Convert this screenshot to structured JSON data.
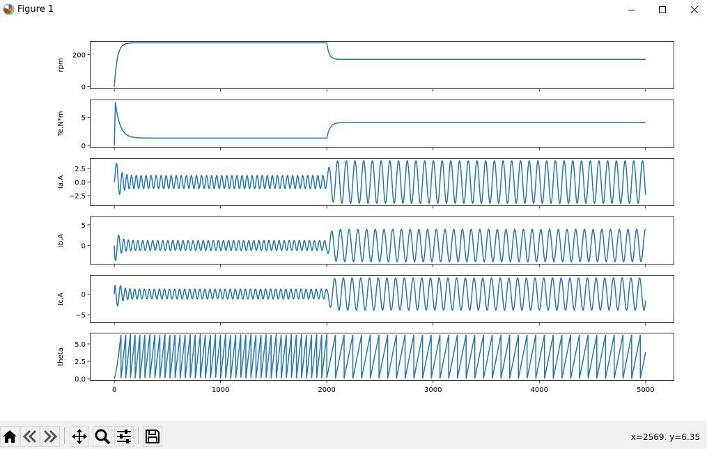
{
  "window": {
    "title": "Figure 1",
    "icons": [
      "matplotlib-logo-icon",
      "minimize-icon",
      "maximize-icon",
      "close-icon"
    ]
  },
  "toolbar": {
    "buttons": [
      {
        "name": "home-button",
        "icon": "home-icon"
      },
      {
        "name": "back-button",
        "icon": "back-arrow-icon"
      },
      {
        "name": "forward-button",
        "icon": "forward-arrow-icon"
      },
      {
        "name": "pan-button",
        "icon": "move-icon"
      },
      {
        "name": "zoom-button",
        "icon": "zoom-icon"
      },
      {
        "name": "subplots-button",
        "icon": "sliders-icon"
      },
      {
        "name": "save-button",
        "icon": "save-icon"
      }
    ],
    "coords": "x=2569. y=6.35"
  },
  "chart_data": [
    {
      "type": "line",
      "ylabel": "rpm",
      "xlim": [
        -230,
        5270
      ],
      "ylim": [
        -15,
        285
      ],
      "yticks": [
        0,
        200
      ],
      "yticklabels": [
        "0",
        "200"
      ],
      "color": "#1f77b4",
      "series": [
        {
          "kind": "step_response",
          "x_end": 5000,
          "start": 0,
          "level1": 274,
          "x_change": 2000,
          "level2": 171
        }
      ]
    },
    {
      "type": "line",
      "ylabel": "Te,N*m",
      "xlim": [
        -230,
        5270
      ],
      "ylim": [
        -0.4,
        8.2
      ],
      "yticks": [
        0,
        5
      ],
      "yticklabels": [
        "0",
        "5"
      ],
      "color": "#1f77b4",
      "series": [
        {
          "kind": "torque",
          "x_end": 5000,
          "peak": 7.7,
          "peak_x": 10,
          "level1": 1.3,
          "x_change": 2000,
          "level2": 4.1
        }
      ]
    },
    {
      "type": "line",
      "ylabel": "Ia,A",
      "xlim": [
        -230,
        5270
      ],
      "ylim": [
        -4.4,
        4.4
      ],
      "yticks": [
        2.5,
        0.0,
        -2.5
      ],
      "yticklabels": [
        "2.5",
        "0.0",
        "−2.5"
      ],
      "color": "#1f77b4",
      "series": [
        {
          "kind": "sine_current",
          "x_end": 5000,
          "phase_deg": 0,
          "amp1": 1.2,
          "period1": 47.6,
          "amp2": 3.9,
          "period2": 82,
          "x_change": 2000
        }
      ]
    },
    {
      "type": "line",
      "ylabel": "Ib,A",
      "xlim": [
        -230,
        5270
      ],
      "ylim": [
        -4.6,
        7.0
      ],
      "yticks": [
        5,
        0
      ],
      "yticklabels": [
        "5",
        "0"
      ],
      "color": "#1f77b4",
      "series": [
        {
          "kind": "sine_current",
          "x_end": 5000,
          "phase_deg": -120,
          "amp1": 1.2,
          "period1": 47.6,
          "amp2": 3.9,
          "period2": 82,
          "x_change": 2000
        }
      ]
    },
    {
      "type": "line",
      "ylabel": "Ic,A",
      "xlim": [
        -230,
        5270
      ],
      "ylim": [
        -7.0,
        4.6
      ],
      "yticks": [
        0,
        -5
      ],
      "yticklabels": [
        "0",
        "−5"
      ],
      "color": "#1f77b4",
      "series": [
        {
          "kind": "sine_current",
          "x_end": 5000,
          "phase_deg": 120,
          "amp1": 1.2,
          "period1": 47.6,
          "amp2": 3.9,
          "period2": 82,
          "x_change": 2000
        }
      ]
    },
    {
      "type": "line",
      "ylabel": "theta",
      "xlim": [
        -230,
        5270
      ],
      "ylim": [
        -0.3,
        6.6
      ],
      "yticks": [
        5.0,
        2.5,
        0.0
      ],
      "yticklabels": [
        "5.0",
        "2.5",
        "0.0"
      ],
      "color": "#1f77b4",
      "xticks": [
        0,
        1000,
        2000,
        3000,
        4000,
        5000
      ],
      "xticklabels": [
        "0",
        "1000",
        "2000",
        "3000",
        "4000",
        "5000"
      ],
      "series": [
        {
          "kind": "sawtooth",
          "x_end": 5000,
          "max": 6.283,
          "period1": 47.6,
          "period2": 82,
          "x_change": 2000
        }
      ]
    }
  ]
}
